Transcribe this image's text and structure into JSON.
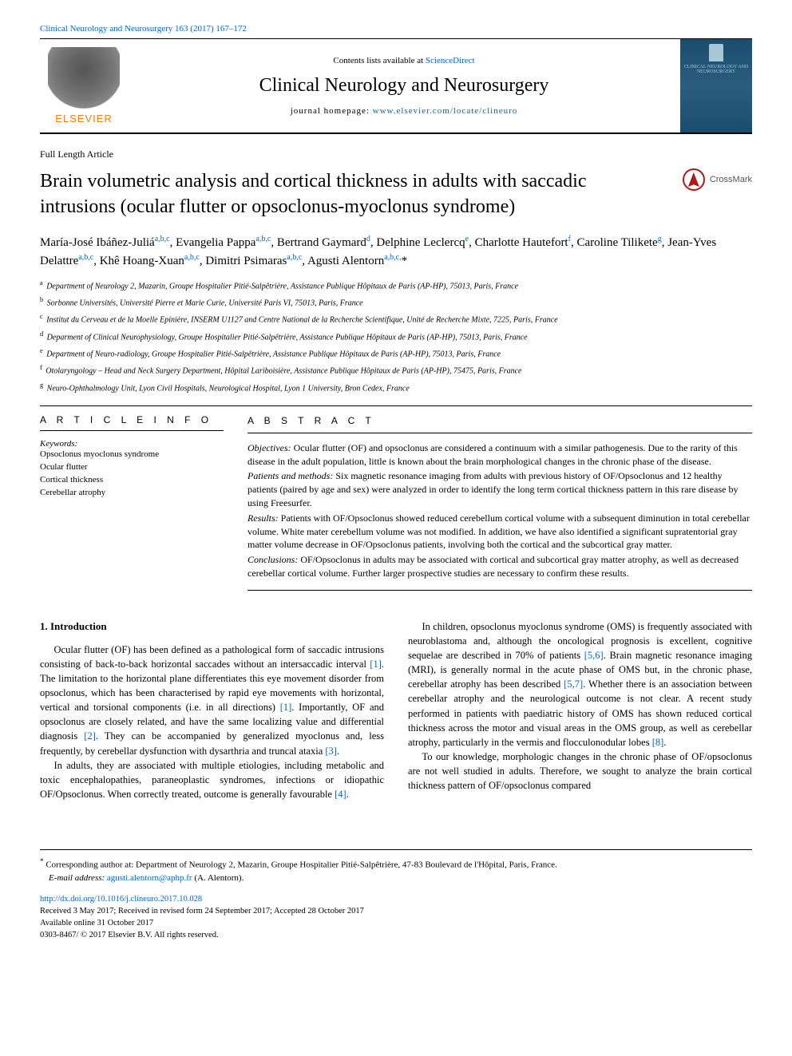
{
  "top_citation_link": "Clinical Neurology and Neurosurgery 163 (2017) 167–172",
  "header": {
    "contents_prefix": "Contents lists available at ",
    "contents_link": "ScienceDirect",
    "journal_name": "Clinical Neurology and Neurosurgery",
    "homepage_prefix": "journal homepage: ",
    "homepage_link": "www.elsevier.com/locate/clineuro",
    "elsevier": "ELSEVIER",
    "cover_text": "CLINICAL NEUROLOGY AND NEUROSURGERY"
  },
  "article_type": "Full Length Article",
  "title": "Brain volumetric analysis and cortical thickness in adults with saccadic intrusions (ocular flutter or opsoclonus-myoclonus syndrome)",
  "crossmark": "CrossMark",
  "authors_html": "María-José Ibáñez-Juliá<sup>a,b,c</sup>, Evangelia Pappa<sup>a,b,c</sup>, Bertrand Gaymard<sup>d</sup>, Delphine Leclercq<sup>e</sup>, Charlotte Hautefort<sup>f</sup>, Caroline Tilikete<sup>g</sup>, Jean-Yves Delattre<sup>a,b,c</sup>, Khê Hoang-Xuan<sup>a,b,c</sup>, Dimitri Psimaras<sup>a,b,c</sup>, Agusti Alentorn<sup>a,b,c,</sup>*",
  "affiliations": [
    {
      "key": "a",
      "text": "Department of Neurology 2, Mazarin, Groupe Hospitalier Pitié-Salpêtrière, Assistance Publique Hôpitaux de Paris (AP-HP), 75013, Paris, France"
    },
    {
      "key": "b",
      "text": "Sorbonne Universités, Université Pierre et Marie Curie, Université Paris VI, 75013, Paris, France"
    },
    {
      "key": "c",
      "text": "Institut du Cerveau et de la Moelle Epinière, INSERM U1127 and Centre National de la Recherche Scientifique, Unité de Recherche Mixte, 7225, Paris, France"
    },
    {
      "key": "d",
      "text": "Deparment of Clinical Neurophysiology, Groupe Hospitalier Pitié-Salpêtrière, Assistance Publique Hôpitaux de Paris (AP-HP), 75013, Paris, France"
    },
    {
      "key": "e",
      "text": "Department of Neuro-radiology, Groupe Hospitalier Pitié-Salpêtrière, Assistance Publique Hôpitaux de Paris (AP-HP), 75013, Paris, France"
    },
    {
      "key": "f",
      "text": "Otolaryngology – Head and Neck Surgery Department, Hôpital Lariboisière, Assistance Publique Hôpitaux de Paris (AP-HP), 75475, Paris, France"
    },
    {
      "key": "g",
      "text": "Neuro-Ophthalmology Unit, Lyon Civil Hospitals, Neurological Hospital, Lyon 1 University, Bron Cedex, France"
    }
  ],
  "article_info_heading": "A R T I C L E  I N F O",
  "keywords_label": "Keywords:",
  "keywords": [
    "Opsoclonus myoclonus syndrome",
    "Ocular flutter",
    "Cortical thickness",
    "Cerebellar atrophy"
  ],
  "abstract_heading": "A B S T R A C T",
  "abstract": {
    "objectives_label": "Objectives:",
    "objectives": " Ocular flutter (OF) and opsoclonus are considered a continuum with a similar pathogenesis. Due to the rarity of this disease in the adult population, little is known about the brain morphological changes in the chronic phase of the disease.",
    "methods_label": "Patients and methods:",
    "methods": " Six magnetic resonance imaging from adults with previous history of OF/Opsoclonus and 12 healthy patients (paired by age and sex) were analyzed in order to identify the long term cortical thickness pattern in this rare disease by using Freesurfer.",
    "results_label": "Results:",
    "results": " Patients with OF/Opsoclonus showed reduced cerebellum cortical volume with a subsequent diminution in total cerebellar volume. White mater cerebellum volume was not modified. In addition, we have also identified a significant supratentorial gray matter volume decrease in OF/Opsoclonus patients, involving both the cortical and the subcortical gray matter.",
    "conclusions_label": "Conclusions:",
    "conclusions": " OF/Opsoclonus in adults may be associated with cortical and subcortical gray matter atrophy, as well as decreased cerebellar cortical volume. Further larger prospective studies are necessary to confirm these results."
  },
  "body": {
    "h1": "1. Introduction",
    "p1": "Ocular flutter (OF) has been defined as a pathological form of saccadic intrusions consisting of back-to-back horizontal saccades without an intersaccadic interval ",
    "r1": "[1]",
    "p1b": ". The limitation to the horizontal plane differentiates this eye movement disorder from opsoclonus, which has been characterised by rapid eye movements with horizontal, vertical and torsional components (i.e. in all directions) ",
    "r1b": "[1]",
    "p1c": ". Importantly, OF and opsoclonus are closely related, and have the same localizing value and differential diagnosis ",
    "r2": "[2]",
    "p1d": ". They can be accompanied by generalized myoclonus and, less frequently, by cerebellar dysfunction with dysarthria and truncal ataxia ",
    "r3": "[3]",
    "p1e": ".",
    "p2": "In adults, they are associated with multiple etiologies, including metabolic and toxic encephalopathies, paraneoplastic syndromes, infections or idiopathic OF/Opsoclonus. When correctly treated, outcome ",
    "p2b": "is generally favourable ",
    "r4": "[4]",
    "p2c": ".",
    "p3": "In children, opsoclonus myoclonus syndrome (OMS) is frequently associated with neuroblastoma and, although the oncological prognosis is excellent, cognitive sequelae are described in 70% of patients ",
    "r56": "[5,6]",
    "p3b": ". Brain magnetic resonance imaging (MRI), is generally normal in the acute phase of OMS but, in the chronic phase, cerebellar atrophy has been described ",
    "r57": "[5,7]",
    "p3c": ". Whether there is an association between cerebellar atrophy and the neurological outcome is not clear. A recent study performed in patients with paediatric history of OMS has shown reduced cortical thickness across the motor and visual areas in the OMS group, as well as cerebellar atrophy, particularly in the vermis and flocculonodular lobes ",
    "r8": "[8]",
    "p3d": ".",
    "p4": "To our knowledge, morphologic changes in the chronic phase of OF/opsoclonus are not well studied in adults. Therefore, we sought to analyze the brain cortical thickness pattern of OF/opsoclonus compared"
  },
  "footnotes": {
    "corr_marker": "*",
    "corr_text": " Corresponding author at: Department of Neurology 2, Mazarin, Groupe Hospitalier Pitié-Salpêtrière, 47-83 Boulevard de l'Hôpital, Paris, France.",
    "email_label": "E-mail address: ",
    "email": "agusti.alentorn@aphp.fr",
    "email_suffix": " (A. Alentorn)."
  },
  "footer": {
    "doi": "http://dx.doi.org/10.1016/j.clineuro.2017.10.028",
    "history": "Received 3 May 2017; Received in revised form 24 September 2017; Accepted 28 October 2017",
    "online": "Available online 31 October 2017",
    "copyright": "0303-8467/ © 2017 Elsevier B.V. All rights reserved."
  },
  "colors": {
    "link": "#0066cc",
    "elsevier_orange": "#ff7a00",
    "crossmark_red": "#b01818",
    "cover_bg": "#1a4d6e"
  }
}
